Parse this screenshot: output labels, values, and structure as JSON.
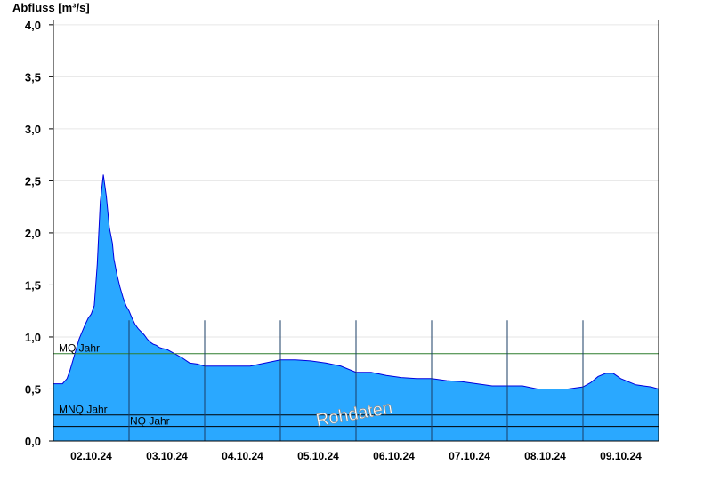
{
  "chart_data": {
    "type": "area",
    "ylabel": "Abfluss [m³/s]",
    "ylim": [
      0,
      4.05
    ],
    "yticks": [
      0,
      0.5,
      1.0,
      1.5,
      2.0,
      2.5,
      3.0,
      3.5,
      4.0
    ],
    "ytick_labels": [
      "0,0",
      "0,5",
      "1,0",
      "1,5",
      "2,0",
      "2,5",
      "3,0",
      "3,5",
      "4,0"
    ],
    "xlim": [
      0,
      8
    ],
    "day_boundaries": [
      1,
      2,
      3,
      4,
      5,
      6,
      7
    ],
    "xtick_labels": [
      "02.10.24",
      "03.10.24",
      "04.10.24",
      "05.10.24",
      "06.10.24",
      "07.10.24",
      "08.10.24",
      "09.10.24"
    ],
    "grid": true,
    "watermark": "Rohdaten",
    "colors": {
      "fill": "#2aa8ff",
      "outline": "#0000dd",
      "mq_line": "#2f7d2f",
      "ref_line": "#000000",
      "grid": "#e6e6e6"
    },
    "reference_lines": [
      {
        "label": "MQ Jahr",
        "value": 0.84,
        "color": "#2f7d2f"
      },
      {
        "label": "MNQ Jahr",
        "value": 0.25,
        "color": "#000000"
      },
      {
        "label": "NQ Jahr",
        "value": 0.14,
        "color": "#000000"
      }
    ],
    "series": [
      {
        "x": [
          0,
          0.12,
          0.18,
          0.22,
          0.26,
          0.3,
          0.34,
          0.38,
          0.42,
          0.46,
          0.5,
          0.54,
          0.58,
          0.62,
          0.66,
          0.7,
          0.74,
          0.78,
          0.8,
          0.84,
          0.88,
          0.92,
          0.96,
          1.0,
          1.04,
          1.08,
          1.12,
          1.16,
          1.2,
          1.24,
          1.28,
          1.32,
          1.36,
          1.4,
          1.44,
          1.5,
          1.55,
          1.6,
          1.7,
          1.8,
          1.9,
          2.0,
          2.2,
          2.4,
          2.6,
          2.8,
          3.0,
          3.2,
          3.4,
          3.6,
          3.8,
          4.0,
          4.2,
          4.4,
          4.6,
          4.8,
          5.0,
          5.2,
          5.4,
          5.6,
          5.8,
          6.0,
          6.2,
          6.4,
          6.6,
          6.8,
          7.0,
          7.1,
          7.2,
          7.3,
          7.4,
          7.5,
          7.6,
          7.7,
          7.8,
          7.9,
          8.0
        ],
        "y": [
          0.55,
          0.55,
          0.6,
          0.68,
          0.78,
          0.88,
          0.98,
          1.05,
          1.12,
          1.18,
          1.22,
          1.3,
          1.7,
          2.3,
          2.56,
          2.35,
          2.05,
          1.9,
          1.75,
          1.6,
          1.48,
          1.38,
          1.3,
          1.25,
          1.18,
          1.12,
          1.08,
          1.05,
          1.02,
          0.98,
          0.95,
          0.93,
          0.92,
          0.9,
          0.89,
          0.88,
          0.86,
          0.84,
          0.8,
          0.75,
          0.74,
          0.72,
          0.72,
          0.72,
          0.72,
          0.75,
          0.78,
          0.78,
          0.77,
          0.75,
          0.72,
          0.66,
          0.66,
          0.63,
          0.61,
          0.6,
          0.6,
          0.58,
          0.57,
          0.55,
          0.53,
          0.53,
          0.53,
          0.5,
          0.5,
          0.5,
          0.52,
          0.56,
          0.62,
          0.65,
          0.65,
          0.6,
          0.57,
          0.54,
          0.53,
          0.52,
          0.5
        ]
      }
    ]
  }
}
